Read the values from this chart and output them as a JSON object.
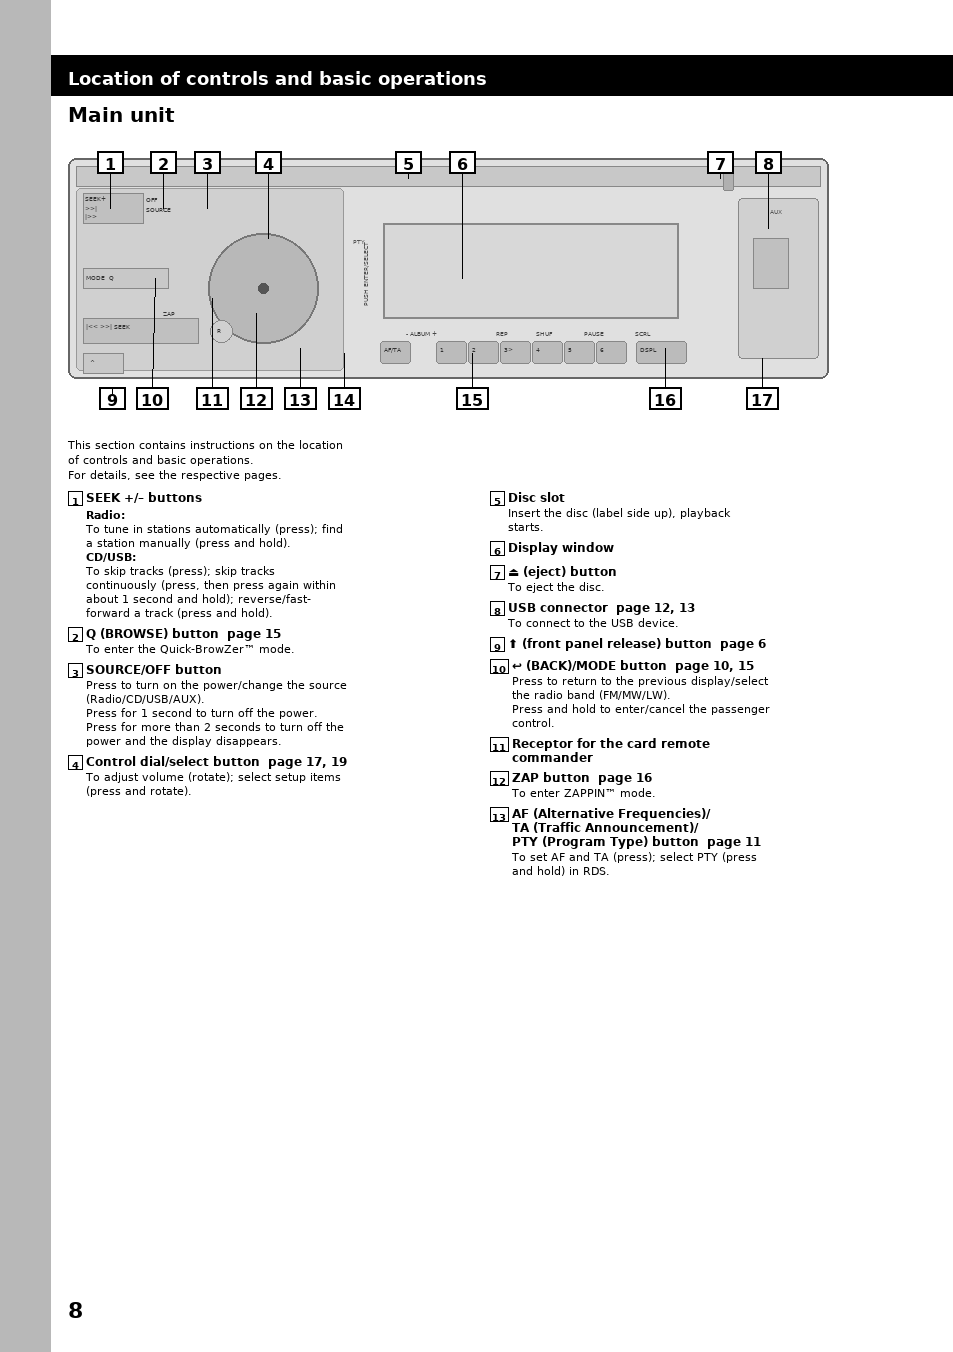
{
  "page_bg": "#ffffff",
  "sidebar_color": "#b8b8b8",
  "header_bg": "#000000",
  "header_text": "Location of controls and basic operations",
  "header_text_color": "#ffffff",
  "section_title": "Main unit",
  "page_number": "8"
}
